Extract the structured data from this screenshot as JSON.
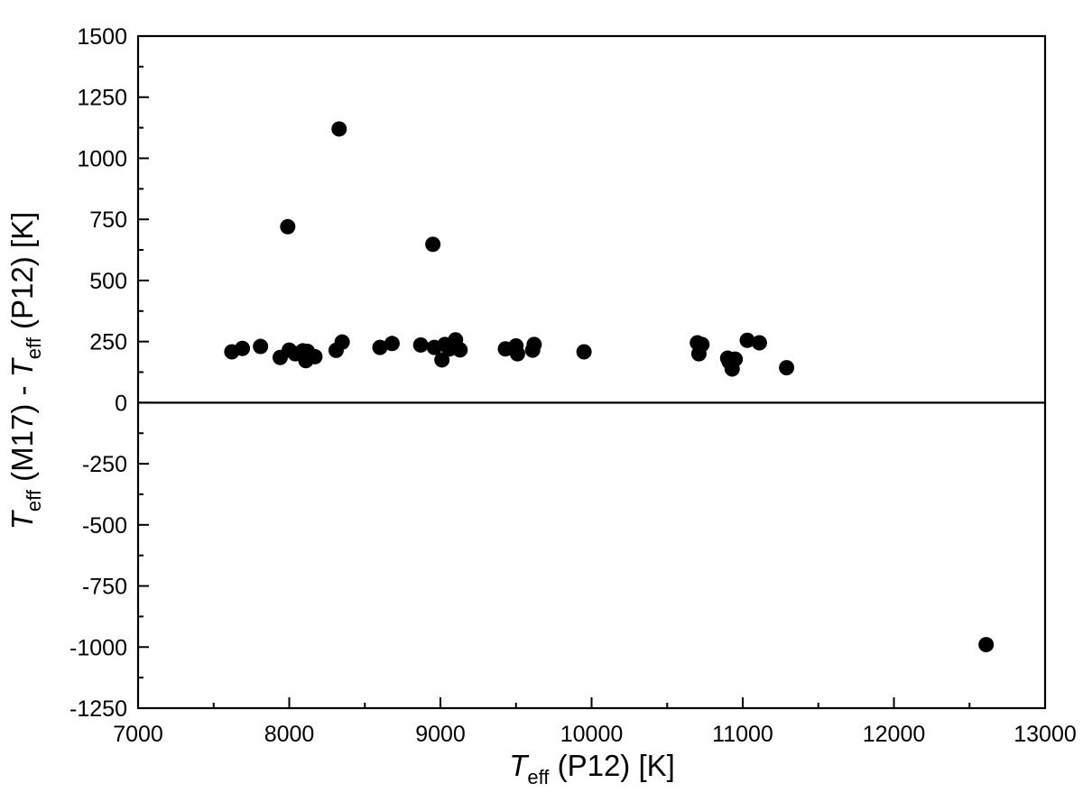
{
  "chart_data": {
    "type": "scatter",
    "xlabel": {
      "symbol": "T",
      "subscript": "eff",
      "rest": " (P12) [K]"
    },
    "ylabel": {
      "symbol1": "T",
      "sub1": "eff",
      "mid": " (M17) - ",
      "symbol2": "T",
      "sub2": "eff",
      "rest": " (P12) [K]"
    },
    "xlim": [
      7000,
      13000
    ],
    "ylim": [
      -1250,
      1500
    ],
    "x_ticks": [
      7000,
      8000,
      9000,
      10000,
      11000,
      12000,
      13000
    ],
    "y_ticks": [
      -1250,
      -1000,
      -750,
      -500,
      -250,
      0,
      250,
      500,
      750,
      1000,
      1250,
      1500
    ],
    "x_minor_step": 500,
    "y_minor_step": 125,
    "reference_line_y": 0,
    "grid": false,
    "marker_color": "#000000",
    "points": [
      {
        "x": 7620,
        "y": 208
      },
      {
        "x": 7690,
        "y": 222
      },
      {
        "x": 7810,
        "y": 230
      },
      {
        "x": 7940,
        "y": 185
      },
      {
        "x": 7990,
        "y": 720
      },
      {
        "x": 8000,
        "y": 215
      },
      {
        "x": 8040,
        "y": 200
      },
      {
        "x": 8090,
        "y": 212
      },
      {
        "x": 8110,
        "y": 172
      },
      {
        "x": 8120,
        "y": 210
      },
      {
        "x": 8170,
        "y": 188
      },
      {
        "x": 8310,
        "y": 214
      },
      {
        "x": 8330,
        "y": 1120
      },
      {
        "x": 8350,
        "y": 248
      },
      {
        "x": 8600,
        "y": 226
      },
      {
        "x": 8680,
        "y": 242
      },
      {
        "x": 8870,
        "y": 236
      },
      {
        "x": 8950,
        "y": 648
      },
      {
        "x": 8960,
        "y": 226
      },
      {
        "x": 9010,
        "y": 175
      },
      {
        "x": 9030,
        "y": 238
      },
      {
        "x": 9060,
        "y": 220
      },
      {
        "x": 9100,
        "y": 257
      },
      {
        "x": 9130,
        "y": 216
      },
      {
        "x": 9430,
        "y": 220
      },
      {
        "x": 9500,
        "y": 232
      },
      {
        "x": 9510,
        "y": 200
      },
      {
        "x": 9610,
        "y": 215
      },
      {
        "x": 9620,
        "y": 238
      },
      {
        "x": 9950,
        "y": 208
      },
      {
        "x": 10700,
        "y": 245
      },
      {
        "x": 10710,
        "y": 200
      },
      {
        "x": 10730,
        "y": 238
      },
      {
        "x": 10900,
        "y": 182
      },
      {
        "x": 10910,
        "y": 168
      },
      {
        "x": 10930,
        "y": 138
      },
      {
        "x": 10950,
        "y": 178
      },
      {
        "x": 11030,
        "y": 255
      },
      {
        "x": 11110,
        "y": 245
      },
      {
        "x": 11290,
        "y": 143
      },
      {
        "x": 12610,
        "y": -990
      }
    ]
  }
}
